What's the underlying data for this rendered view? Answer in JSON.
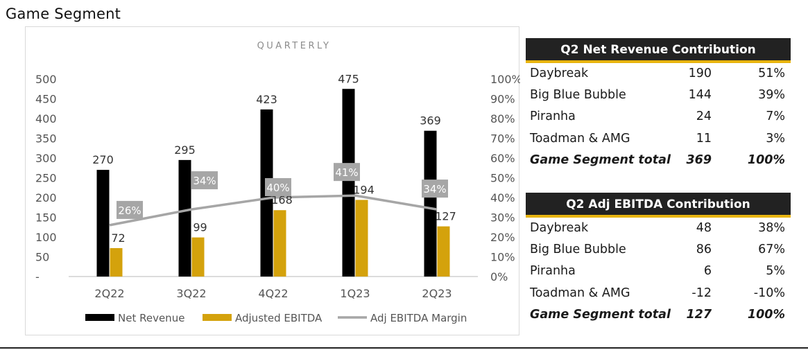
{
  "page_title": "Game Segment",
  "chart_data": {
    "type": "bar",
    "title": "QUARTERLY",
    "categories": [
      "2Q22",
      "3Q22",
      "4Q22",
      "1Q23",
      "2Q23"
    ],
    "series": [
      {
        "name": "Net Revenue",
        "type": "bar",
        "axis": "left",
        "color": "#000000",
        "values": [
          270,
          295,
          423,
          475,
          369
        ]
      },
      {
        "name": "Adjusted EBITDA",
        "type": "bar",
        "axis": "left",
        "color": "#d4a20c",
        "values": [
          72,
          99,
          168,
          194,
          127
        ]
      },
      {
        "name": "Adj EBITDA Margin",
        "type": "line",
        "axis": "right",
        "color": "#a6a6a6",
        "values": [
          26,
          34,
          40,
          41,
          34
        ],
        "labels": [
          "26%",
          "34%",
          "40%",
          "41%",
          "34%"
        ]
      }
    ],
    "y_left": {
      "min": 0,
      "max": 500,
      "step": 50,
      "ticks": [
        "-",
        "50",
        "100",
        "150",
        "200",
        "250",
        "300",
        "350",
        "400",
        "450",
        "500"
      ]
    },
    "y_right": {
      "min": 0,
      "max": 100,
      "step": 10,
      "ticks": [
        "0%",
        "10%",
        "20%",
        "30%",
        "40%",
        "50%",
        "60%",
        "70%",
        "80%",
        "90%",
        "100%"
      ]
    },
    "grid": false,
    "legend_position": "bottom"
  },
  "revenue_table": {
    "title": "Q2 Net Revenue Contribution",
    "rows": [
      {
        "name": "Daybreak",
        "value": "190",
        "pct": "51%"
      },
      {
        "name": "Big Blue Bubble",
        "value": "144",
        "pct": "39%"
      },
      {
        "name": "Piranha",
        "value": "24",
        "pct": "7%"
      },
      {
        "name": "Toadman & AMG",
        "value": "11",
        "pct": "3%"
      }
    ],
    "total": {
      "name": "Game Segment total",
      "value": "369",
      "pct": "100%"
    }
  },
  "ebitda_table": {
    "title": "Q2 Adj EBITDA Contribution",
    "rows": [
      {
        "name": "Daybreak",
        "value": "48",
        "pct": "38%"
      },
      {
        "name": "Big Blue Bubble",
        "value": "86",
        "pct": "67%"
      },
      {
        "name": "Piranha",
        "value": "6",
        "pct": "5%"
      },
      {
        "name": "Toadman & AMG",
        "value": "-12",
        "pct": "-10%"
      }
    ],
    "total": {
      "name": "Game Segment total",
      "value": "127",
      "pct": "100%"
    }
  },
  "colors": {
    "net_revenue": "#000000",
    "adjusted_ebitda": "#d4a20c",
    "margin_line": "#a6a6a6",
    "table_header_bg": "#222222",
    "table_header_accent": "#e8b40e"
  }
}
